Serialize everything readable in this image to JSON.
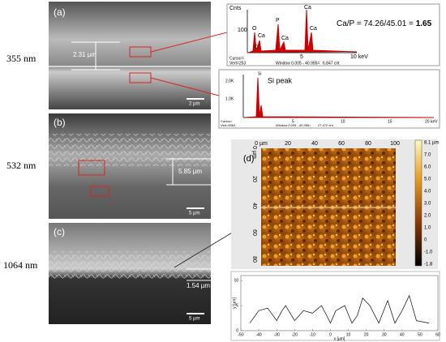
{
  "row_labels": [
    "355 nm",
    "532 nm",
    "1064 nm"
  ],
  "panels": {
    "a": {
      "label": "(a)",
      "thickness": "2.31 µm",
      "scale_bar": "2 µm"
    },
    "b": {
      "label": "(b)",
      "thickness": "5.85 µm",
      "scale_bar": "5 µm"
    },
    "c": {
      "label": "(c)",
      "thickness": "1.54 µm",
      "scale_bar": "5 µm"
    },
    "d": {
      "label": "(d)"
    }
  },
  "edx_top": {
    "y_title": "Cnts",
    "y_tick": "100",
    "peaks": [
      "O",
      "Ca",
      "C",
      "P",
      "Ca",
      "Ca",
      "Ca"
    ],
    "ratio_text": "Ca/P = 74.26/45.01 =",
    "ratio_value": "1.65",
    "x_ticks": [
      "5",
      "10 keV"
    ],
    "cursor": "Cursor=",
    "vert": "Vert=253",
    "window": "Window 0.005 - 40.955=",
    "cnt": "6.847 cnt"
  },
  "edx_si": {
    "y_ticks": [
      "2.0K",
      "1.0K"
    ],
    "annotation": "Si peak",
    "peak": "Si",
    "x_ticks": [
      "5",
      "10",
      "15",
      "20 keV"
    ],
    "cursor": "Cursor=",
    "vert": "Vert=5363",
    "window": "Window 0.005 - 40.955=",
    "cnt": "27.472 cnt"
  },
  "afm": {
    "x_ticks": [
      "0 µm",
      "20",
      "40",
      "60",
      "80",
      "100"
    ],
    "y_ticks": [
      "0 µm",
      "20",
      "40",
      "60",
      "80"
    ],
    "colorbar_ticks": [
      "8.1 µm",
      "7.0",
      "6.0",
      "5.0",
      "4.0",
      "3.0",
      "2.0",
      "1.0",
      "0",
      "-1.0",
      "-1.8"
    ]
  },
  "profile": {
    "x_label": "x [µm]",
    "y_label": "y [µm]",
    "xlim": [
      -50,
      60
    ],
    "ylim": [
      0,
      11
    ],
    "xticks": [
      -50,
      -40,
      -30,
      -20,
      -10,
      0,
      10,
      20,
      30,
      40,
      50,
      60
    ],
    "yticks": [
      0,
      5,
      10
    ],
    "x": [
      -45,
      -42,
      -40,
      -35,
      -30,
      -27,
      -25,
      -20,
      -15,
      -10,
      -5,
      -2,
      0,
      3,
      8,
      12,
      15,
      18,
      22,
      27,
      32,
      36,
      40,
      44,
      48,
      55
    ],
    "y": [
      1.5,
      3,
      4,
      4.5,
      2,
      4,
      5,
      2,
      4,
      3.5,
      5,
      3,
      1.5,
      4,
      5,
      1.5,
      3,
      6.5,
      5,
      1.5,
      6,
      1.5,
      4,
      7,
      2,
      1.5
    ]
  }
}
